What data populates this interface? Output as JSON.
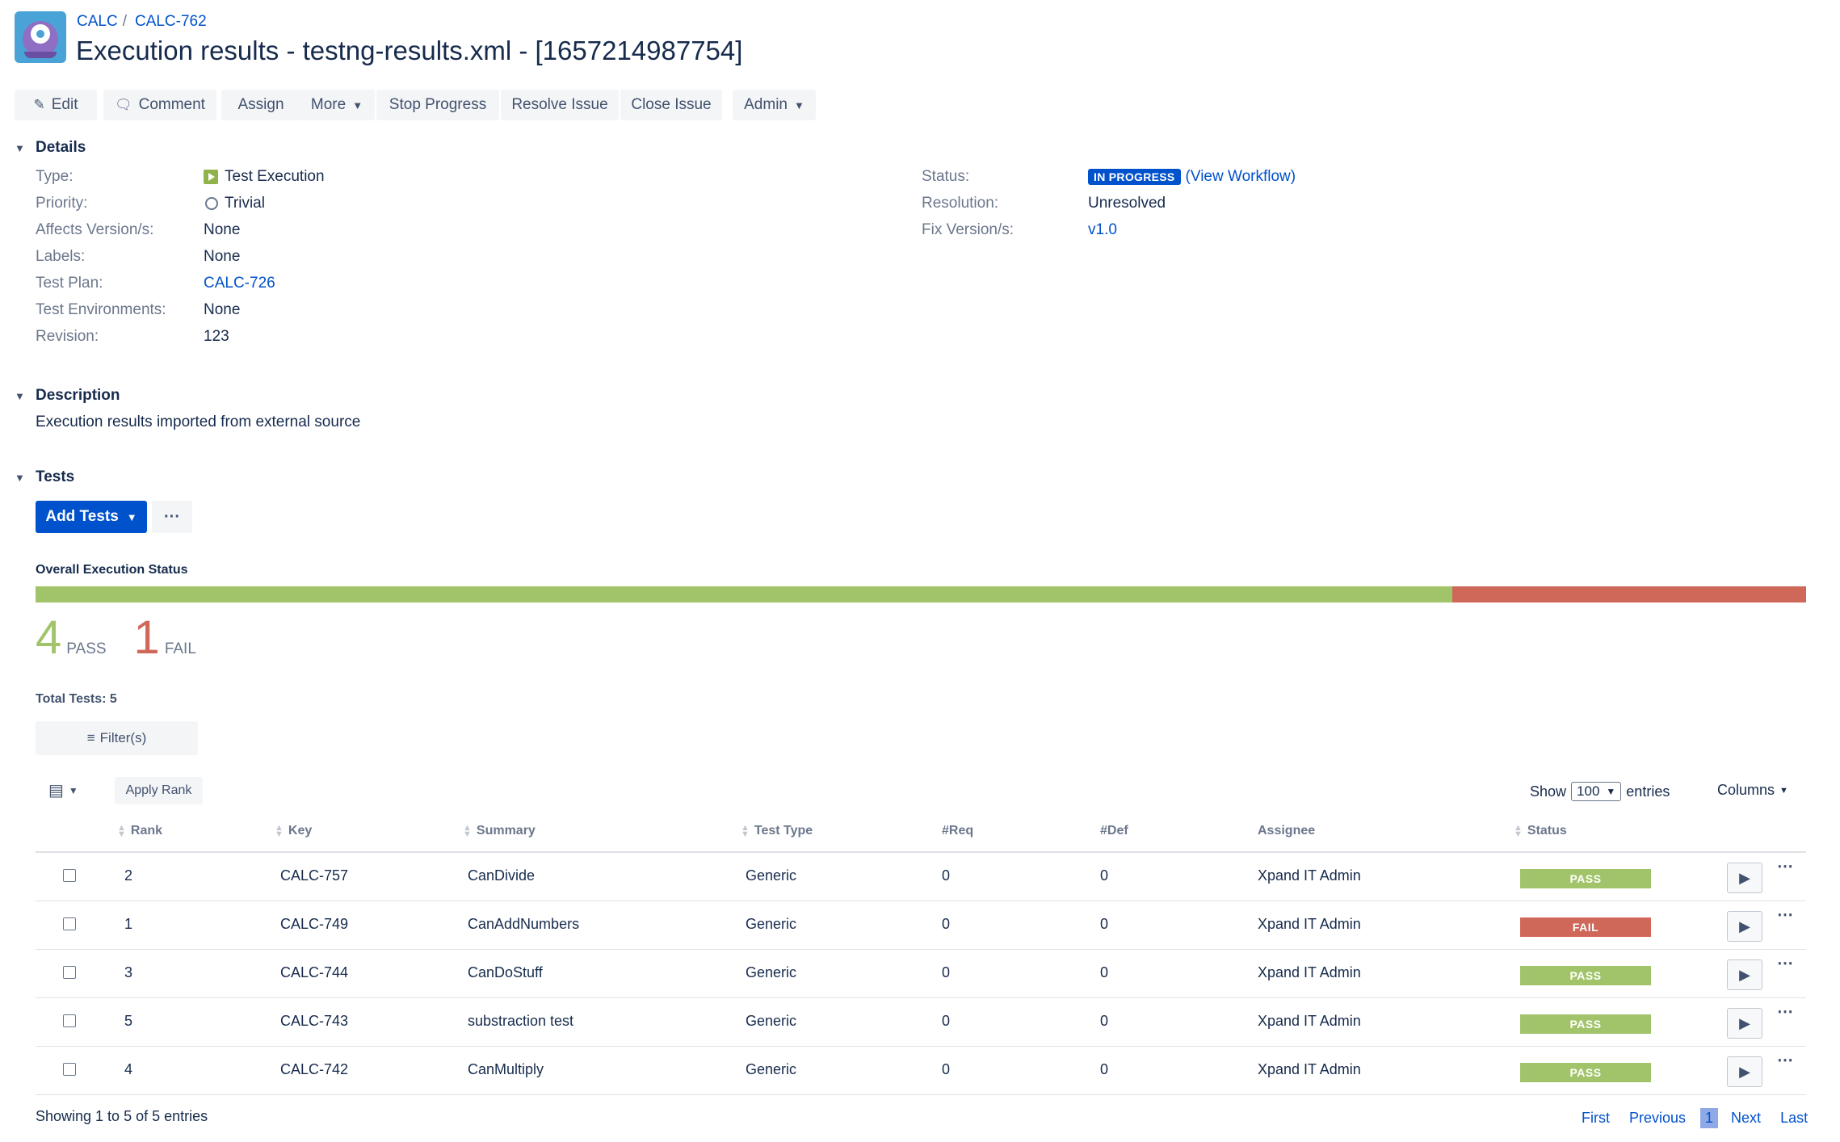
{
  "breadcrumb": {
    "project": "CALC",
    "issue": "CALC-762",
    "separator": "/"
  },
  "title": "Execution results - testng-results.xml - [1657214987754]",
  "toolbar": {
    "edit": "Edit",
    "comment": "Comment",
    "assign": "Assign",
    "more": "More",
    "stop_progress": "Stop Progress",
    "resolve_issue": "Resolve Issue",
    "close_issue": "Close Issue",
    "admin": "Admin"
  },
  "details": {
    "heading": "Details",
    "left": [
      {
        "label": "Type:",
        "value": "Test Execution"
      },
      {
        "label": "Priority:",
        "value": "Trivial"
      },
      {
        "label": "Affects Version/s:",
        "value": "None"
      },
      {
        "label": "Labels:",
        "value": "None"
      },
      {
        "label": "Test Plan:",
        "value": "CALC-726"
      },
      {
        "label": "Test Environments:",
        "value": "None"
      },
      {
        "label": "Revision:",
        "value": "123"
      }
    ],
    "right": [
      {
        "label": "Status:",
        "value": "IN PROGRESS",
        "extra_open": "(",
        "extra_link": "View Workflow",
        "extra_close": ")"
      },
      {
        "label": "Resolution:",
        "value": "Unresolved"
      },
      {
        "label": "Fix Version/s:",
        "value": "v1.0"
      }
    ]
  },
  "description": {
    "heading": "Description",
    "text": "Execution results imported from external source"
  },
  "tests": {
    "heading": "Tests",
    "add_tests": "Add Tests",
    "more_label": "···",
    "overall_label": "Overall Execution Status",
    "pass_count": "4",
    "pass_label": "PASS",
    "fail_count": "1",
    "fail_label": "FAIL",
    "pass_fraction": 0.8,
    "fail_fraction": 0.2,
    "total": "Total Tests: 5",
    "filters": "Filter(s)",
    "apply_rank": "Apply Rank",
    "show_label": "Show",
    "show_value": "100",
    "entries_label": "entries",
    "columns_label": "Columns",
    "headers": {
      "rank": "Rank",
      "key": "Key",
      "summary": "Summary",
      "test_type": "Test Type",
      "req": "#Req",
      "def": "#Def",
      "assignee": "Assignee",
      "status": "Status"
    },
    "rows": [
      {
        "rank": "2",
        "key": "CALC-757",
        "summary": "CanDivide",
        "test_type": "Generic",
        "req": "0",
        "def": "0",
        "assignee": "Xpand IT Admin",
        "status": "PASS"
      },
      {
        "rank": "1",
        "key": "CALC-749",
        "summary": "CanAddNumbers",
        "test_type": "Generic",
        "req": "0",
        "def": "0",
        "assignee": "Xpand IT Admin",
        "status": "FAIL"
      },
      {
        "rank": "3",
        "key": "CALC-744",
        "summary": "CanDoStuff",
        "test_type": "Generic",
        "req": "0",
        "def": "0",
        "assignee": "Xpand IT Admin",
        "status": "PASS"
      },
      {
        "rank": "5",
        "key": "CALC-743",
        "summary": "substraction test",
        "test_type": "Generic",
        "req": "0",
        "def": "0",
        "assignee": "Xpand IT Admin",
        "status": "PASS"
      },
      {
        "rank": "4",
        "key": "CALC-742",
        "summary": "CanMultiply",
        "test_type": "Generic",
        "req": "0",
        "def": "0",
        "assignee": "Xpand IT Admin",
        "status": "PASS"
      }
    ],
    "showing": "Showing 1 to 5 of 5 entries",
    "pager": {
      "first": "First",
      "previous": "Previous",
      "current": "1",
      "next": "Next",
      "last": "Last"
    }
  },
  "colors": {
    "pass": "#a1c46a",
    "fail": "#d0685a",
    "primary": "#0052cc"
  },
  "icons": {
    "edit": "pencil-icon",
    "comment": "comment-icon",
    "chevron": "chevron-down-icon",
    "type": "test-execution-icon",
    "priority": "trivial-priority-icon",
    "filter": "filter-icon",
    "run": "play-icon",
    "columns": "column-picker-icon"
  }
}
